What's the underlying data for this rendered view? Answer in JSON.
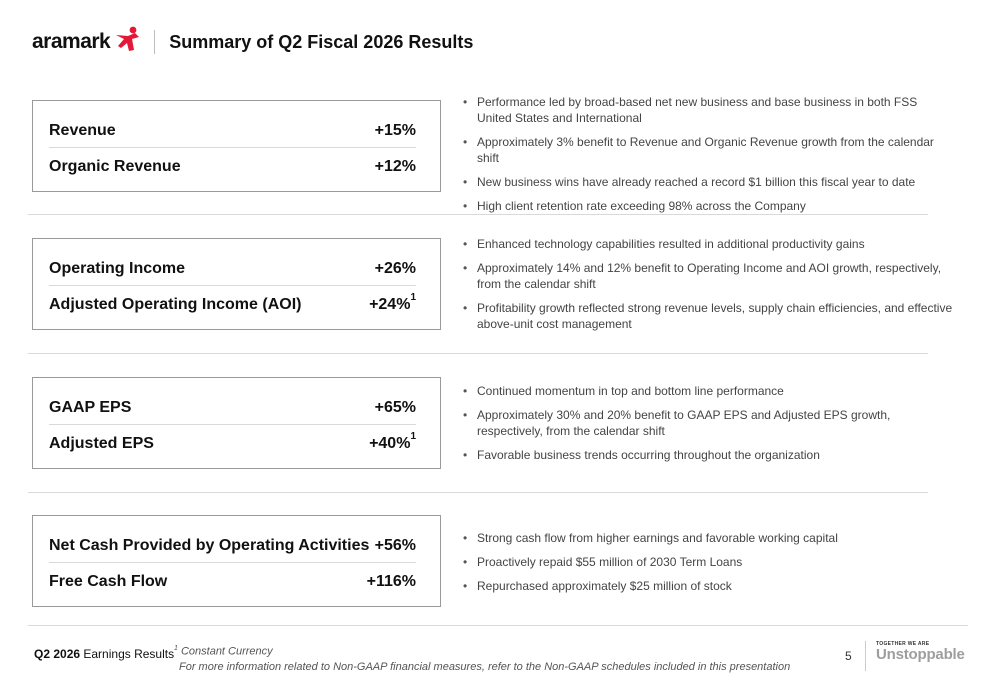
{
  "header": {
    "logo_text": "aramark",
    "title": "Summary of Q2 Fiscal 2026 Results"
  },
  "colors": {
    "brand_red": "#e31837",
    "text": "#111111",
    "muted": "#9e9e9e"
  },
  "sections": [
    {
      "metrics": [
        {
          "label": "Revenue",
          "value": "+15%",
          "footnote": ""
        },
        {
          "label": "Organic Revenue",
          "value": "+12%",
          "footnote": ""
        }
      ],
      "bullets": [
        "Performance led by broad-based net new business and base business in both FSS United States and International",
        "Approximately 3% benefit to Revenue and Organic Revenue growth from the calendar shift",
        "New business wins have already reached a record $1 billion this fiscal year to date",
        "High client retention rate exceeding 98% across the Company"
      ]
    },
    {
      "metrics": [
        {
          "label": "Operating Income",
          "value": "+26%",
          "footnote": ""
        },
        {
          "label": "Adjusted Operating Income (AOI)",
          "value": "+24%",
          "footnote": "1"
        }
      ],
      "bullets": [
        "Enhanced technology capabilities resulted in additional productivity gains",
        "Approximately 14% and 12% benefit to Operating Income and AOI growth, respectively, from the calendar shift",
        "Profitability growth reflected strong revenue levels, supply chain efficiencies, and effective above-unit cost management"
      ]
    },
    {
      "metrics": [
        {
          "label": "GAAP EPS",
          "value": "+65%",
          "footnote": ""
        },
        {
          "label": "Adjusted EPS",
          "value": "+40%",
          "footnote": "1"
        }
      ],
      "bullets": [
        "Continued momentum in top and bottom line performance",
        "Approximately 30% and 20% benefit to GAAP EPS and Adjusted EPS growth, respectively, from the calendar shift",
        "Favorable business trends occurring throughout the organization"
      ]
    },
    {
      "metrics": [
        {
          "label": "Net Cash Provided by Operating Activities",
          "value": "+56%",
          "footnote": ""
        },
        {
          "label": "Free Cash Flow",
          "value": "+116%",
          "footnote": ""
        }
      ],
      "bullets": [
        "Strong cash flow from higher earnings and favorable working capital",
        "Proactively repaid $55 million of 2030 Term Loans",
        "Repurchased approximately $25 million of stock"
      ]
    }
  ],
  "footer": {
    "earnings_bold": "Q2 2026",
    "earnings_rest": " Earnings Results",
    "footnote_marker": "1",
    "footnote_line1": " Constant Currency",
    "footnote_line2": "For more information related to Non-GAAP financial measures, refer to the Non-GAAP schedules included in this presentation",
    "page_number": "5",
    "tagline_small": "TOGETHER WE ARE",
    "tagline_big": "Unstoppable"
  }
}
